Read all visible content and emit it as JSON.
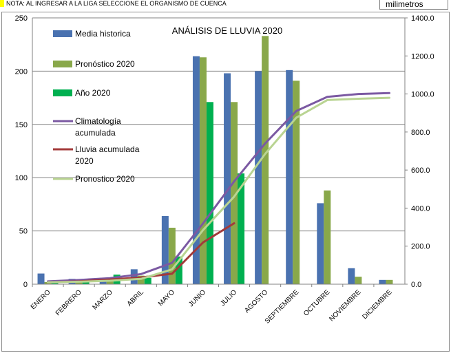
{
  "note": "NOTA: AL INGRESAR A LA LIGA SELECCIONE EL ORGANISMO DE CUENCA",
  "unit_label": "milimetros",
  "colors": {
    "media_historica": "#4a72b0",
    "pronostico_2020_bar": "#89a84a",
    "ano_2020": "#00b050",
    "climatologia_acumulada": "#7b59a2",
    "lluvia_acumulada": "#a33a3a",
    "pronostico_2020_line": "#b9d492",
    "note_marker": "#ffff00"
  },
  "chart_data": {
    "type": "bar",
    "title": "ANÁLISIS DE LLUVIA 2020",
    "categories": [
      "ENERO",
      "FEBRERO",
      "MARZO",
      "ABRIL",
      "MAYO",
      "JUNIO",
      "JULIO",
      "AGOSTO",
      "SEPTIEMBRE",
      "OCTUBRE",
      "NOVIEMBRE",
      "DICIEMBRE"
    ],
    "ylim": [
      0,
      250
    ],
    "yticks": [
      0,
      50,
      100,
      150,
      200,
      250
    ],
    "y2lim": [
      0,
      1400
    ],
    "y2ticks": [
      "0.0",
      "200.0",
      "400.0",
      "600.0",
      "800.0",
      "1000.0",
      "1200.0",
      "1400.0"
    ],
    "y2tick_values": [
      0,
      200,
      400,
      600,
      800,
      1000,
      1200,
      1400
    ],
    "grid": true,
    "legend_position": "left",
    "series": [
      {
        "name": "Media historica",
        "kind": "bar",
        "axis": "left",
        "values": [
          10,
          5,
          6,
          14,
          64,
          214,
          198,
          200,
          201,
          76,
          15,
          4
        ]
      },
      {
        "name": "Pronóstico 2020",
        "kind": "bar",
        "axis": "left",
        "values": [
          2,
          4,
          5,
          8,
          53,
          213,
          171,
          233,
          191,
          88,
          7,
          4
        ]
      },
      {
        "name": "Año 2020",
        "kind": "bar",
        "axis": "left",
        "values": [
          1,
          5,
          9,
          6,
          26,
          171,
          104,
          null,
          null,
          null,
          null,
          null
        ]
      },
      {
        "name": "Climatología acumulada",
        "kind": "line",
        "axis": "right",
        "values": [
          15,
          22,
          32,
          53,
          112,
          320,
          540,
          740,
          910,
          985,
          1000,
          1005
        ]
      },
      {
        "name": "Lluvia acumulada 2020",
        "kind": "line",
        "axis": "right",
        "values": [
          10,
          15,
          25,
          35,
          55,
          220,
          320,
          null,
          null,
          null,
          null,
          null
        ]
      },
      {
        "name": "Pronostico 2020",
        "kind": "line",
        "axis": "right",
        "values": [
          10,
          13,
          18,
          28,
          78,
          285,
          460,
          685,
          875,
          968,
          975,
          980
        ]
      }
    ]
  }
}
